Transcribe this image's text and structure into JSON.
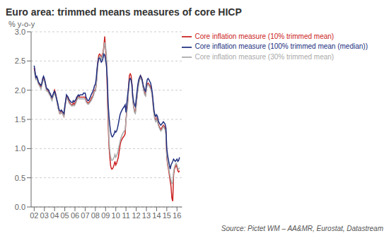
{
  "chart_data": {
    "type": "line",
    "title": "Euro area: trimmed means measures of core HICP",
    "ylabel": "% y-o-y",
    "annotations": [
      "Source: Pictet WM – AA&MR, Eurostat, Datastream"
    ],
    "x": [
      2002.0,
      2002.083,
      2002.167,
      2002.25,
      2002.333,
      2002.417,
      2002.5,
      2002.583,
      2002.667,
      2002.75,
      2002.833,
      2002.917,
      2003.0,
      2003.083,
      2003.167,
      2003.25,
      2003.333,
      2003.417,
      2003.5,
      2003.583,
      2003.667,
      2003.75,
      2003.833,
      2003.917,
      2004.0,
      2004.083,
      2004.167,
      2004.25,
      2004.333,
      2004.417,
      2004.5,
      2004.583,
      2004.667,
      2004.75,
      2004.833,
      2004.917,
      2005.0,
      2005.083,
      2005.167,
      2005.25,
      2005.333,
      2005.417,
      2005.5,
      2005.583,
      2005.667,
      2005.75,
      2005.833,
      2005.917,
      2006.0,
      2006.083,
      2006.167,
      2006.25,
      2006.333,
      2006.417,
      2006.5,
      2006.583,
      2006.667,
      2006.75,
      2006.833,
      2006.917,
      2007.0,
      2007.083,
      2007.167,
      2007.25,
      2007.333,
      2007.417,
      2007.5,
      2007.583,
      2007.667,
      2007.75,
      2007.833,
      2007.917,
      2008.0,
      2008.083,
      2008.167,
      2008.25,
      2008.333,
      2008.417,
      2008.5,
      2008.583,
      2008.667,
      2008.75,
      2008.833,
      2008.917,
      2009.0,
      2009.083,
      2009.167,
      2009.25,
      2009.333,
      2009.417,
      2009.5,
      2009.583,
      2009.667,
      2009.75,
      2009.833,
      2009.917,
      2010.0,
      2010.083,
      2010.167,
      2010.25,
      2010.333,
      2010.417,
      2010.5,
      2010.583,
      2010.667,
      2010.75,
      2010.833,
      2010.917,
      2011.0,
      2011.083,
      2011.167,
      2011.25,
      2011.333,
      2011.417,
      2011.5,
      2011.583,
      2011.667,
      2011.75,
      2011.833,
      2011.917,
      2012.0,
      2012.083,
      2012.167,
      2012.25,
      2012.333,
      2012.417,
      2012.5,
      2012.583,
      2012.667,
      2012.75,
      2012.833,
      2012.917,
      2013.0,
      2013.083,
      2013.167,
      2013.25,
      2013.333,
      2013.417,
      2013.5,
      2013.583,
      2013.667,
      2013.75,
      2013.833,
      2013.917,
      2014.0,
      2014.083,
      2014.167,
      2014.25,
      2014.333,
      2014.417,
      2014.5,
      2014.583,
      2014.667,
      2014.75,
      2014.833,
      2014.917,
      2015.0,
      2015.083,
      2015.167,
      2015.25,
      2015.333,
      2015.417,
      2015.5,
      2015.583,
      2015.667,
      2015.75,
      2015.833,
      2015.917,
      2016.0,
      2016.083,
      2016.167,
      2016.25
    ],
    "series": [
      {
        "name": "Core inflation measure (10% trimmed mean)",
        "color": "#cc2222",
        "values": [
          2.38,
          2.3,
          2.2,
          2.22,
          2.18,
          2.12,
          2.1,
          2.08,
          2.05,
          2.1,
          2.18,
          2.22,
          2.18,
          2.12,
          2.05,
          2.0,
          2.0,
          1.98,
          1.95,
          1.92,
          1.88,
          1.85,
          1.9,
          1.95,
          2.0,
          1.95,
          1.88,
          1.8,
          1.72,
          1.65,
          1.6,
          1.6,
          1.65,
          1.62,
          1.58,
          1.55,
          1.7,
          1.8,
          1.9,
          1.88,
          1.85,
          1.8,
          1.78,
          1.76,
          1.75,
          1.75,
          1.78,
          1.75,
          1.78,
          1.8,
          1.85,
          1.88,
          1.9,
          1.88,
          1.88,
          1.88,
          1.88,
          1.88,
          1.88,
          1.88,
          1.88,
          1.82,
          1.8,
          1.78,
          1.78,
          1.8,
          1.82,
          1.85,
          1.88,
          1.9,
          1.95,
          2.0,
          2.0,
          2.1,
          2.3,
          2.5,
          2.6,
          2.62,
          2.6,
          2.55,
          2.6,
          2.65,
          2.75,
          2.92,
          2.7,
          2.5,
          2.0,
          1.45,
          1.05,
          0.85,
          0.7,
          0.65,
          0.65,
          0.68,
          0.72,
          0.78,
          0.72,
          0.75,
          0.8,
          0.85,
          0.95,
          1.05,
          1.12,
          1.15,
          1.18,
          1.2,
          1.22,
          1.25,
          1.5,
          1.65,
          1.8,
          2.05,
          2.25,
          2.28,
          2.25,
          2.1,
          1.85,
          1.72,
          1.65,
          1.62,
          1.75,
          1.9,
          2.05,
          2.15,
          2.2,
          2.25,
          2.22,
          2.18,
          2.08,
          2.0,
          1.95,
          1.92,
          2.05,
          2.1,
          2.12,
          2.1,
          2.08,
          2.05,
          2.0,
          1.9,
          1.75,
          1.6,
          1.52,
          1.48,
          1.52,
          1.48,
          1.42,
          1.38,
          1.35,
          1.32,
          1.35,
          1.38,
          1.4,
          1.38,
          1.35,
          1.28,
          0.85,
          0.72,
          0.65,
          0.55,
          0.45,
          0.35,
          0.15,
          0.1,
          0.55,
          0.65,
          0.68,
          0.72,
          0.68,
          0.62,
          0.6,
          0.62
        ]
      },
      {
        "name": "Core inflation measure (30% trimmed mean)",
        "color": "#aaaaaa",
        "values": [
          2.32,
          2.25,
          2.18,
          2.2,
          2.15,
          2.1,
          2.08,
          2.05,
          2.02,
          2.08,
          2.15,
          2.18,
          2.15,
          2.1,
          2.02,
          1.98,
          1.98,
          1.95,
          1.92,
          1.9,
          1.85,
          1.82,
          1.88,
          1.92,
          1.95,
          1.9,
          1.85,
          1.78,
          1.7,
          1.65,
          1.6,
          1.6,
          1.62,
          1.6,
          1.58,
          1.55,
          1.68,
          1.78,
          1.88,
          1.85,
          1.82,
          1.78,
          1.76,
          1.75,
          1.73,
          1.73,
          1.75,
          1.73,
          1.75,
          1.78,
          1.82,
          1.85,
          1.88,
          1.85,
          1.85,
          1.85,
          1.85,
          1.85,
          1.85,
          1.85,
          1.85,
          1.8,
          1.78,
          1.76,
          1.76,
          1.78,
          1.8,
          1.82,
          1.85,
          1.88,
          1.92,
          1.98,
          1.98,
          2.08,
          2.25,
          2.45,
          2.55,
          2.58,
          2.58,
          2.52,
          2.58,
          2.62,
          2.72,
          2.82,
          2.75,
          2.6,
          2.15,
          1.6,
          1.15,
          0.95,
          0.85,
          0.8,
          0.8,
          0.82,
          0.85,
          0.9,
          0.85,
          0.88,
          0.92,
          0.98,
          1.05,
          1.12,
          1.18,
          1.22,
          1.25,
          1.28,
          1.3,
          1.32,
          1.48,
          1.62,
          1.75,
          2.0,
          2.18,
          2.2,
          2.18,
          2.05,
          1.82,
          1.7,
          1.62,
          1.6,
          1.72,
          1.88,
          2.0,
          2.1,
          2.18,
          2.2,
          2.18,
          2.15,
          2.05,
          1.98,
          1.92,
          1.9,
          2.02,
          2.08,
          2.1,
          2.08,
          2.05,
          2.02,
          1.98,
          1.88,
          1.72,
          1.58,
          1.5,
          1.46,
          1.5,
          1.46,
          1.4,
          1.36,
          1.33,
          1.3,
          1.32,
          1.35,
          1.38,
          1.35,
          1.32,
          1.25,
          0.88,
          0.75,
          0.68,
          0.6,
          0.52,
          0.45,
          0.4,
          0.42,
          0.6,
          0.68,
          0.72,
          0.75,
          0.72,
          0.66,
          0.65,
          0.67
        ]
      },
      {
        "name": "Core inflation measure (100% trimmed mean (median))",
        "color": "#203080",
        "values": [
          2.42,
          2.32,
          2.22,
          2.24,
          2.2,
          2.14,
          2.12,
          2.1,
          2.08,
          2.12,
          2.2,
          2.24,
          2.2,
          2.14,
          2.06,
          2.02,
          2.02,
          2.0,
          1.96,
          1.94,
          1.9,
          1.88,
          1.92,
          1.96,
          1.98,
          1.94,
          1.88,
          1.82,
          1.76,
          1.68,
          1.65,
          1.64,
          1.66,
          1.64,
          1.62,
          1.6,
          1.72,
          1.82,
          1.92,
          1.9,
          1.88,
          1.84,
          1.82,
          1.8,
          1.79,
          1.79,
          1.82,
          1.8,
          1.82,
          1.84,
          1.88,
          1.9,
          1.92,
          1.9,
          1.92,
          1.92,
          1.92,
          1.92,
          1.95,
          1.95,
          1.95,
          1.88,
          1.85,
          1.82,
          1.82,
          1.85,
          1.88,
          1.92,
          1.95,
          1.98,
          2.02,
          2.08,
          2.1,
          2.2,
          2.38,
          2.48,
          2.55,
          2.55,
          2.52,
          2.48,
          2.5,
          2.55,
          2.62,
          2.6,
          2.52,
          2.42,
          2.2,
          1.78,
          1.55,
          1.4,
          1.28,
          1.22,
          1.2,
          1.22,
          1.25,
          1.3,
          1.28,
          1.3,
          1.35,
          1.42,
          1.5,
          1.58,
          1.62,
          1.65,
          1.68,
          1.7,
          1.72,
          1.75,
          1.62,
          1.78,
          1.92,
          2.05,
          2.18,
          2.2,
          2.18,
          2.1,
          1.9,
          1.8,
          1.75,
          1.72,
          1.85,
          1.98,
          2.1,
          2.18,
          2.22,
          2.25,
          2.22,
          2.18,
          2.1,
          2.05,
          2.0,
          1.98,
          2.1,
          2.18,
          2.2,
          2.18,
          2.15,
          2.12,
          2.05,
          1.95,
          1.8,
          1.65,
          1.58,
          1.55,
          1.58,
          1.55,
          1.48,
          1.44,
          1.42,
          1.4,
          1.42,
          1.44,
          1.46,
          1.44,
          1.42,
          1.35,
          1.0,
          0.88,
          0.8,
          0.72,
          0.65,
          0.72,
          0.75,
          0.78,
          0.82,
          0.8,
          0.78,
          0.8,
          0.82,
          0.78,
          0.8,
          0.85
        ]
      }
    ],
    "xlim": [
      2001.7,
      2016.5
    ],
    "xticks": [
      {
        "value": 2002,
        "label": "02"
      },
      {
        "value": 2003,
        "label": "03"
      },
      {
        "value": 2004,
        "label": "04"
      },
      {
        "value": 2005,
        "label": "05"
      },
      {
        "value": 2006,
        "label": "06"
      },
      {
        "value": 2007,
        "label": "07"
      },
      {
        "value": 2008,
        "label": "08"
      },
      {
        "value": 2009,
        "label": "09"
      },
      {
        "value": 2010,
        "label": "10"
      },
      {
        "value": 2011,
        "label": "11"
      },
      {
        "value": 2012,
        "label": "12"
      },
      {
        "value": 2013,
        "label": "13"
      },
      {
        "value": 2014,
        "label": "14"
      },
      {
        "value": 2015,
        "label": "15"
      },
      {
        "value": 2016,
        "label": "16"
      }
    ],
    "ylim": [
      0.0,
      3.0
    ],
    "yticks": [
      {
        "value": 0.0,
        "label": "0.0"
      },
      0.5,
      {
        "value": 1.0,
        "label": "1.0"
      },
      1.5,
      {
        "value": 2.0,
        "label": "2.0"
      },
      2.5,
      {
        "value": 3.0,
        "label": "3.0"
      }
    ],
    "grid": true,
    "legend": "upper right"
  }
}
